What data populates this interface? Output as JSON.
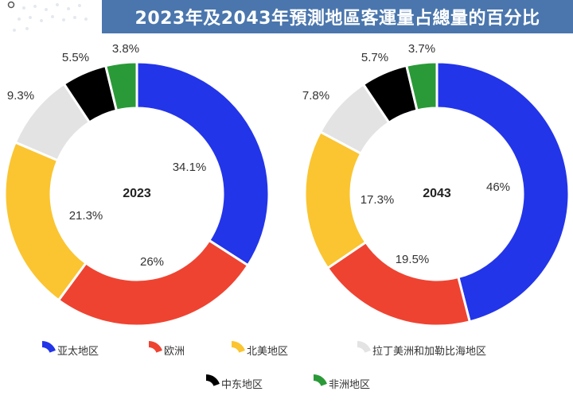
{
  "title": "2023年及2043年預測地區客運量占總量的百分比",
  "chart_data": [
    {
      "type": "pie",
      "center_label": "2023",
      "slices": [
        {
          "name": "亚太地区",
          "value": 34.1,
          "label": "34.1%",
          "color": "#2335e8"
        },
        {
          "name": "欧洲",
          "value": 26,
          "label": "26%",
          "color": "#ef4331"
        },
        {
          "name": "北美地区",
          "value": 21.3,
          "label": "21.3%",
          "color": "#fbc531"
        },
        {
          "name": "拉丁美洲和加勒比海地区",
          "value": 9.3,
          "label": "9.3%",
          "color": "#e3e3e3"
        },
        {
          "name": "中东地区",
          "value": 5.5,
          "label": "5.5%",
          "color": "#000000"
        },
        {
          "name": "非洲地区",
          "value": 3.8,
          "label": "3.8%",
          "color": "#2a9a38"
        }
      ]
    },
    {
      "type": "pie",
      "center_label": "2043",
      "slices": [
        {
          "name": "亚太地区",
          "value": 46,
          "label": "46%",
          "color": "#2335e8"
        },
        {
          "name": "欧洲",
          "value": 19.5,
          "label": "19.5%",
          "color": "#ef4331"
        },
        {
          "name": "北美地区",
          "value": 17.3,
          "label": "17.3%",
          "color": "#fbc531"
        },
        {
          "name": "拉丁美洲和加勒比海地区",
          "value": 7.8,
          "label": "7.8%",
          "color": "#e3e3e3"
        },
        {
          "name": "中东地区",
          "value": 5.7,
          "label": "5.7%",
          "color": "#000000"
        },
        {
          "name": "非洲地区",
          "value": 3.7,
          "label": "3.7%",
          "color": "#2a9a38"
        }
      ]
    }
  ],
  "legend": [
    {
      "label": "亚太地区",
      "color": "#2335e8"
    },
    {
      "label": "欧洲",
      "color": "#ef4331"
    },
    {
      "label": "北美地区",
      "color": "#fbc531"
    },
    {
      "label": "拉丁美洲和加勒比海地区",
      "color": "#e3e3e3"
    },
    {
      "label": "中东地区",
      "color": "#000000"
    },
    {
      "label": "非洲地区",
      "color": "#2a9a38"
    }
  ]
}
